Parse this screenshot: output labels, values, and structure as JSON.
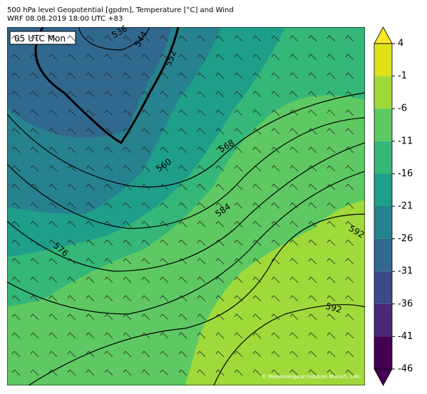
{
  "header": {
    "title": "500 hPa level Geopotential [gpdm], Temperature [°C] and Wind",
    "subtitle": "WRF 08.08.2019 18:00 UTC +83"
  },
  "map": {
    "time_label": "05 UTC Mon",
    "contour_labels": [
      536,
      544,
      552,
      560,
      568,
      576,
      584,
      592,
      592
    ],
    "credit": "© Meteorological Institute Munich, LMU"
  },
  "colorbar": {
    "levels": [
      -46,
      -41,
      -36,
      -31,
      -26,
      -21,
      -16,
      -11,
      -6,
      -1,
      4
    ],
    "colors": [
      "#440154",
      "#482878",
      "#3e4989",
      "#31688e",
      "#26828e",
      "#1f9e89",
      "#35b779",
      "#5ec962",
      "#9fda3a",
      "#dfe318"
    ],
    "extend_colors": [
      "#440154",
      "#fde725"
    ]
  }
}
